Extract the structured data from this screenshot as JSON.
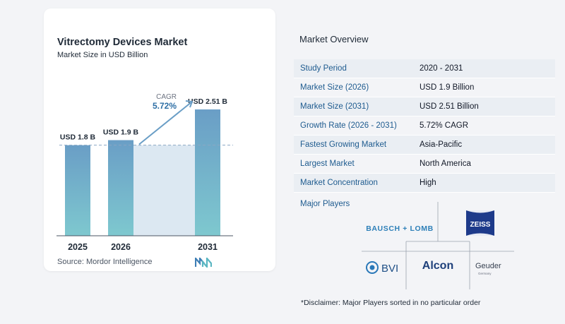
{
  "chart": {
    "title": "Vitrectomy Devices Market",
    "subtitle": "Market Size in USD Billion",
    "cagr_label": "CAGR",
    "cagr_value": "5.72%",
    "source": "Source:  Mordor Intelligence",
    "colors": {
      "bar_top": "#6a9ec6",
      "bar_bottom": "#7ec8cf",
      "band": "#dce8f2",
      "arrow": "#6a9ec6",
      "axis": "#4b5563",
      "cagr_value": "#2e6fa5"
    }
  },
  "chart_data": {
    "type": "bar",
    "title": "Vitrectomy Devices Market",
    "subtitle": "Market Size in USD Billion",
    "categories": [
      "2025",
      "2026",
      "2031"
    ],
    "values": [
      1.8,
      1.9,
      2.51
    ],
    "data_labels": [
      "USD 1.8 B",
      "USD 1.9 B",
      "USD 2.51 B"
    ],
    "annotation": {
      "label": "CAGR",
      "value": "5.72%"
    },
    "xlabel": "",
    "ylabel": ""
  },
  "overview": {
    "title": "Market Overview",
    "rows": [
      {
        "label": "Study Period",
        "value": "2020 - 2031"
      },
      {
        "label": "Market Size (2026)",
        "value": "USD 1.9 Billion"
      },
      {
        "label": "Market Size (2031)",
        "value": "USD 2.51 Billion"
      },
      {
        "label": "Growth Rate (2026 - 2031)",
        "value": "5.72% CAGR"
      },
      {
        "label": "Fastest Growing Market",
        "value": "Asia-Pacific"
      },
      {
        "label": "Largest Market",
        "value": "North America"
      },
      {
        "label": "Market Concentration",
        "value": "High"
      }
    ]
  },
  "players": {
    "title": "Major Players",
    "logos": {
      "bausch": "BAUSCH + LOMB",
      "zeiss": "ZEISS",
      "bvi": "BVI",
      "alcon": "Alcon",
      "geuder": "Geuder",
      "geuder_sub": "Germany"
    }
  },
  "disclaimer": "*Disclaimer: Major Players sorted in no particular order"
}
